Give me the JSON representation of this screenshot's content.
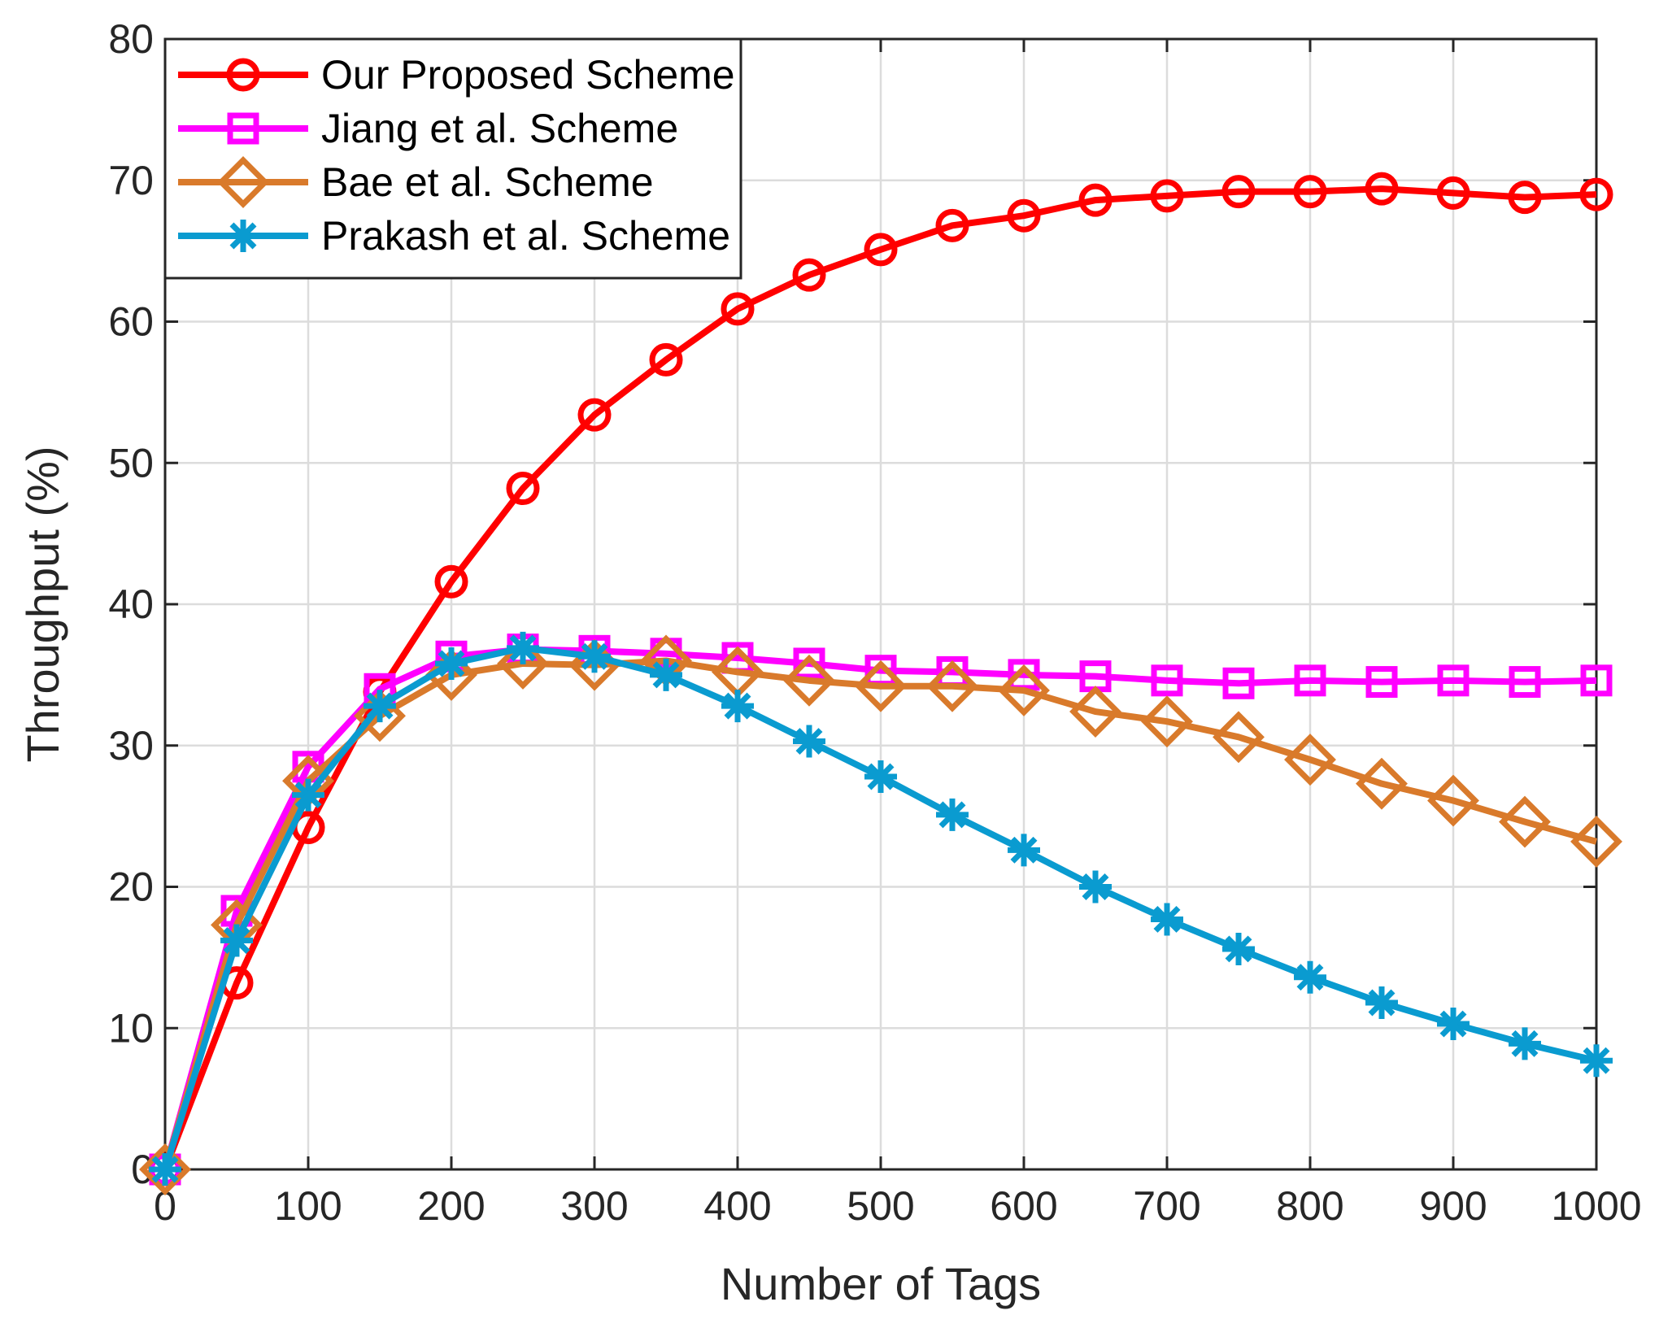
{
  "chart_data": {
    "type": "line",
    "title": "",
    "xlabel": "Number of Tags",
    "ylabel": "Throughput (%)",
    "xlim": [
      0,
      1000
    ],
    "ylim": [
      0,
      80
    ],
    "x_ticks": [
      0,
      100,
      200,
      300,
      400,
      500,
      600,
      700,
      800,
      900,
      1000
    ],
    "y_ticks": [
      0,
      10,
      20,
      30,
      40,
      50,
      60,
      70,
      80
    ],
    "grid": true,
    "legend_position": "top-left",
    "x": [
      0,
      50,
      100,
      150,
      200,
      250,
      300,
      350,
      400,
      450,
      500,
      550,
      600,
      650,
      700,
      750,
      800,
      850,
      900,
      950,
      1000
    ],
    "series": [
      {
        "name": "Our Proposed Scheme",
        "color": "#ff0000",
        "marker": "circle",
        "values": [
          0,
          13.2,
          24.2,
          33.8,
          41.6,
          48.2,
          53.4,
          57.3,
          60.9,
          63.3,
          65.1,
          66.8,
          67.5,
          68.6,
          68.9,
          69.2,
          69.2,
          69.4,
          69.1,
          68.8,
          69.0
        ]
      },
      {
        "name": "Jiang et al. Scheme",
        "color": "#ff00ff",
        "marker": "square",
        "values": [
          0,
          18.3,
          28.5,
          34.0,
          36.3,
          36.8,
          36.7,
          36.5,
          36.2,
          35.8,
          35.3,
          35.2,
          35.0,
          34.9,
          34.6,
          34.4,
          34.6,
          34.5,
          34.6,
          34.5,
          34.6
        ]
      },
      {
        "name": "Bae et al. Scheme",
        "color": "#d97a2b",
        "marker": "diamond",
        "values": [
          0,
          17.3,
          27.5,
          32.1,
          35.0,
          35.8,
          35.7,
          36.0,
          35.2,
          34.6,
          34.2,
          34.2,
          33.9,
          32.4,
          31.7,
          30.6,
          29.0,
          27.3,
          26.1,
          24.6,
          23.2
        ]
      },
      {
        "name": "Prakash et al. Scheme",
        "color": "#0a9bd0",
        "marker": "asterisk",
        "values": [
          0,
          16.2,
          26.5,
          32.8,
          35.8,
          36.9,
          36.3,
          35.0,
          32.8,
          30.3,
          27.8,
          25.1,
          22.6,
          20.0,
          17.7,
          15.6,
          13.6,
          11.8,
          10.3,
          8.9,
          7.7
        ]
      }
    ]
  }
}
